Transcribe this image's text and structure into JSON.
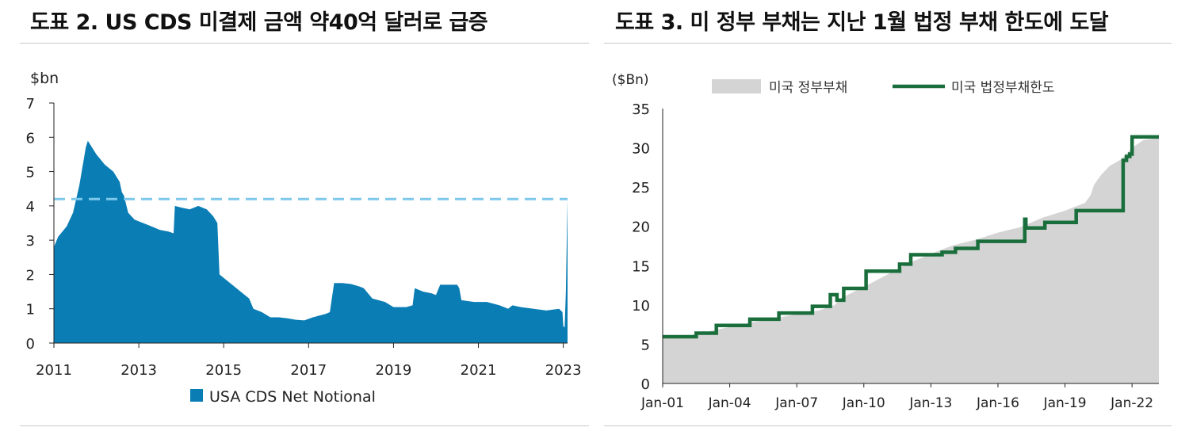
{
  "titles": {
    "left": "도표 2. US CDS 미결제 금액 약40억 달러로 급증",
    "right": "도표 3. 미 정부 부채는 지난 1월 법정 부채 한도에 도달"
  },
  "chart_data": [
    {
      "type": "area",
      "ylabel": "$bn",
      "ylim": [
        0,
        7
      ],
      "yticks": [
        "0",
        "1",
        "2",
        "3",
        "4",
        "5",
        "6",
        "7"
      ],
      "xlim": [
        2011,
        2023.1
      ],
      "xticks": [
        "2011",
        "2013",
        "2015",
        "2017",
        "2019",
        "2021",
        "2023"
      ],
      "reference_line": {
        "value": 4.2,
        "color": "#7ec8ec",
        "style": "dashed"
      },
      "series": [
        {
          "name": "USA CDS Net Notional",
          "color": "#0a7db4",
          "x": [
            2011.0,
            2011.1,
            2011.3,
            2011.45,
            2011.6,
            2011.75,
            2011.8,
            2012.0,
            2012.2,
            2012.4,
            2012.55,
            2012.6,
            2012.65,
            2012.75,
            2012.9,
            2013.1,
            2013.3,
            2013.5,
            2013.7,
            2013.82,
            2013.85,
            2014.0,
            2014.2,
            2014.4,
            2014.6,
            2014.75,
            2014.85,
            2014.9,
            2015.0,
            2015.2,
            2015.4,
            2015.6,
            2015.7,
            2015.9,
            2016.1,
            2016.3,
            2016.5,
            2016.7,
            2016.9,
            2017.1,
            2017.4,
            2017.5,
            2017.6,
            2017.8,
            2018.0,
            2018.2,
            2018.3,
            2018.5,
            2018.8,
            2019.0,
            2019.3,
            2019.45,
            2019.5,
            2019.7,
            2019.9,
            2020.0,
            2020.1,
            2020.5,
            2020.55,
            2020.6,
            2020.9,
            2021.2,
            2021.5,
            2021.7,
            2021.8,
            2022.0,
            2022.3,
            2022.6,
            2022.9,
            2022.98,
            2023.0,
            2023.03,
            2023.06,
            2023.09,
            2023.1
          ],
          "values": [
            2.8,
            3.1,
            3.4,
            3.8,
            4.6,
            5.7,
            5.9,
            5.5,
            5.2,
            5.0,
            4.7,
            4.4,
            4.3,
            3.8,
            3.6,
            3.5,
            3.4,
            3.3,
            3.25,
            3.2,
            4.0,
            3.95,
            3.9,
            4.0,
            3.9,
            3.7,
            3.5,
            2.0,
            1.9,
            1.7,
            1.5,
            1.3,
            1.0,
            0.9,
            0.75,
            0.75,
            0.72,
            0.68,
            0.66,
            0.75,
            0.85,
            0.9,
            1.75,
            1.75,
            1.72,
            1.65,
            1.6,
            1.3,
            1.2,
            1.05,
            1.05,
            1.1,
            1.6,
            1.5,
            1.45,
            1.4,
            1.7,
            1.7,
            1.6,
            1.25,
            1.2,
            1.2,
            1.1,
            1.0,
            1.1,
            1.05,
            1.0,
            0.95,
            1.0,
            0.9,
            0.5,
            0.45,
            1.5,
            3.6,
            4.2
          ]
        }
      ],
      "legend": {
        "placement": "bottom-left"
      }
    },
    {
      "type": "area",
      "ylabel": "($Bn)",
      "ylim": [
        0,
        35
      ],
      "yticks": [
        "0",
        "5",
        "10",
        "15",
        "20",
        "25",
        "30",
        "35"
      ],
      "xlim": [
        2001.0,
        2023.2
      ],
      "xticks": [
        "Jan-01",
        "Jan-04",
        "Jan-07",
        "Jan-10",
        "Jan-13",
        "Jan-16",
        "Jan-19",
        "Jan-22"
      ],
      "legend": {
        "placement": "top"
      },
      "series": [
        {
          "name": "미국 정부부채",
          "style": "area",
          "color": "#d4d4d4",
          "x": [
            2001.0,
            2002.0,
            2003.0,
            2004.0,
            2005.0,
            2006.0,
            2007.0,
            2008.0,
            2008.7,
            2009.0,
            2010.0,
            2011.0,
            2012.0,
            2013.0,
            2014.0,
            2015.0,
            2016.0,
            2017.0,
            2018.0,
            2019.0,
            2019.9,
            2020.15,
            2020.3,
            2020.6,
            2021.0,
            2021.5,
            2022.0,
            2022.5,
            2023.0,
            2023.2
          ],
          "values": [
            5.7,
            6.0,
            6.6,
            7.2,
            7.8,
            8.3,
            8.8,
            9.3,
            10.0,
            10.9,
            12.3,
            13.8,
            15.3,
            16.5,
            17.6,
            18.3,
            19.2,
            19.9,
            21.1,
            22.0,
            23.0,
            24.0,
            25.3,
            26.5,
            27.7,
            28.5,
            30.0,
            31.0,
            31.2,
            31.4
          ]
        },
        {
          "name": "미국 법정부채한도",
          "style": "step-line",
          "color": "#1a6e3c",
          "x": [
            2001.0,
            2002.5,
            2003.4,
            2004.9,
            2006.2,
            2007.7,
            2008.5,
            2008.8,
            2009.1,
            2010.1,
            2011.6,
            2011.9,
            2012.1,
            2013.5,
            2014.1,
            2015.1,
            2017.2,
            2017.25,
            2018.1,
            2019.5,
            2021.6,
            2021.75,
            2021.9,
            2022.0,
            2023.2
          ],
          "values": [
            5.95,
            6.4,
            7.38,
            8.18,
            8.97,
            9.82,
            11.3,
            10.6,
            12.1,
            14.29,
            15.19,
            15.19,
            16.39,
            16.7,
            17.2,
            18.1,
            20.9,
            19.8,
            20.5,
            22.0,
            28.4,
            28.9,
            29.2,
            31.4,
            31.4
          ]
        }
      ]
    }
  ]
}
